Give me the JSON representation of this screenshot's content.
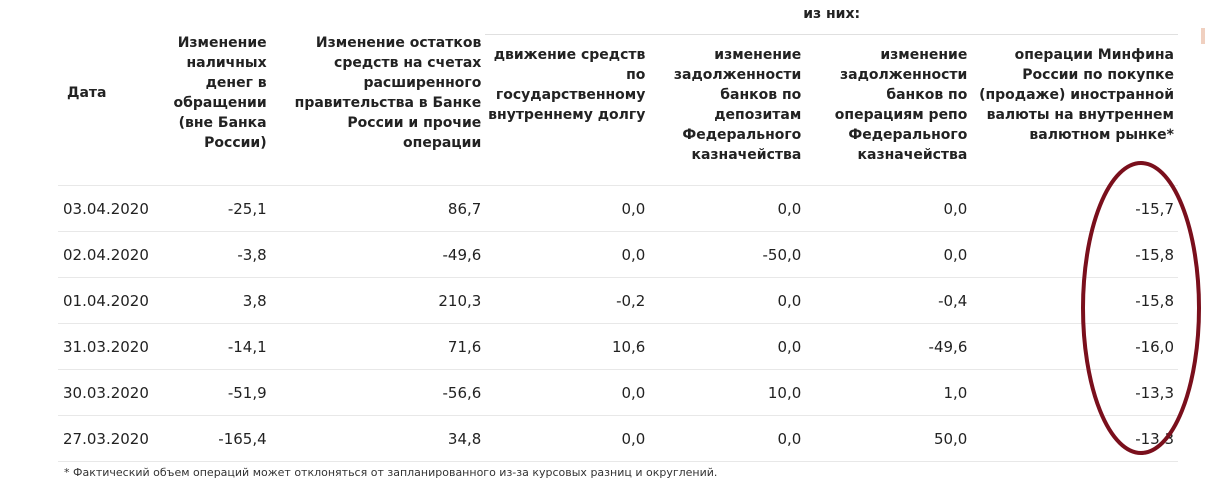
{
  "table": {
    "headers": {
      "date": "Дата",
      "cash": "Изменение наличных денег в обращении (вне Банка России)",
      "gov_accounts": "Изменение остатков средств на счетах расширенного правительства в Банке России и прочие операции",
      "group_label": "из них:",
      "gov_debt": "движение средств по государственному внутреннему долгу",
      "deposits": "изменение задолженности банков по депозитам Федерального казначейства",
      "repo": "изменение задолженности банков по операциям репо Федерального казначейства",
      "minfin": "операции Минфина России по покупке (продаже) иностранной валюты на внутреннем валютном рынке*"
    },
    "rows": [
      {
        "date": "03.04.2020",
        "cash": "-25,1",
        "gov_accounts": "86,7",
        "gov_debt": "0,0",
        "deposits": "0,0",
        "repo": "0,0",
        "minfin": "-15,7"
      },
      {
        "date": "02.04.2020",
        "cash": "-3,8",
        "gov_accounts": "-49,6",
        "gov_debt": "0,0",
        "deposits": "-50,0",
        "repo": "0,0",
        "minfin": "-15,8"
      },
      {
        "date": "01.04.2020",
        "cash": "3,8",
        "gov_accounts": "210,3",
        "gov_debt": "-0,2",
        "deposits": "0,0",
        "repo": "-0,4",
        "minfin": "-15,8"
      },
      {
        "date": "31.03.2020",
        "cash": "-14,1",
        "gov_accounts": "71,6",
        "gov_debt": "10,6",
        "deposits": "0,0",
        "repo": "-49,6",
        "minfin": "-16,0"
      },
      {
        "date": "30.03.2020",
        "cash": "-51,9",
        "gov_accounts": "-56,6",
        "gov_debt": "0,0",
        "deposits": "10,0",
        "repo": "1,0",
        "minfin": "-13,3"
      },
      {
        "date": "27.03.2020",
        "cash": "-165,4",
        "gov_accounts": "34,8",
        "gov_debt": "0,0",
        "deposits": "0,0",
        "repo": "50,0",
        "minfin": "-13,3"
      }
    ]
  },
  "footnote": "* Фактический объем операций может отклоняться от запланированного из-за курсовых разниц и округлений.",
  "annotation": {
    "color": "#7a0f1c"
  }
}
